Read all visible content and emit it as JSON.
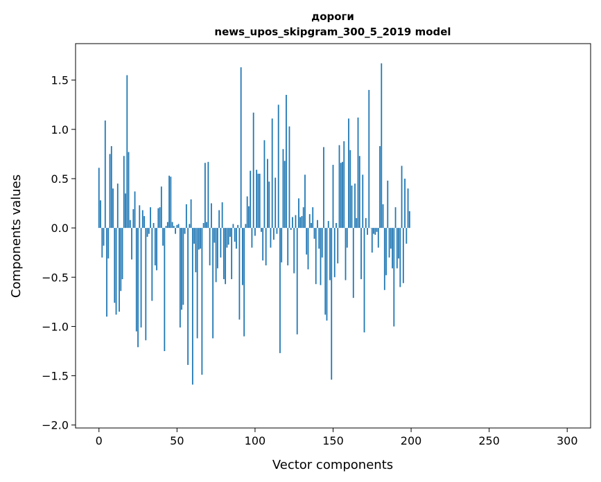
{
  "chart_data": {
    "type": "bar",
    "title": "дороги",
    "subtitle": "news_upos_skipgram_300_5_2019 model",
    "xlabel": "Vector components",
    "ylabel": "Components values",
    "xlim": [
      -15,
      315
    ],
    "ylim": [
      -2.03,
      1.87
    ],
    "xticks": [
      0,
      50,
      100,
      150,
      200,
      250,
      300
    ],
    "yticks": [
      -2.0,
      -1.5,
      -1.0,
      -0.5,
      0.0,
      0.5,
      1.0,
      1.5
    ],
    "ytick_labels": [
      "−2.0",
      "−1.5",
      "−1.0",
      "−0.5",
      "0.0",
      "0.5",
      "1.0",
      "1.5"
    ],
    "grid": false,
    "bar_color": "#1f77b4",
    "values": [
      0.61,
      0.28,
      -0.3,
      -0.18,
      1.09,
      -0.9,
      -0.31,
      0.75,
      0.83,
      0.4,
      -0.76,
      -0.88,
      0.45,
      -0.85,
      -0.64,
      -0.52,
      0.73,
      0.35,
      1.55,
      0.77,
      0.08,
      -0.32,
      0.19,
      0.37,
      -1.05,
      -1.21,
      0.23,
      -1.01,
      0.18,
      0.12,
      -1.14,
      -0.09,
      -0.06,
      0.21,
      -0.74,
      0.05,
      -0.38,
      -0.43,
      0.2,
      0.21,
      0.42,
      -0.18,
      -1.25,
      0.02,
      0.06,
      0.53,
      0.52,
      0.06,
      0.02,
      -0.06,
      0.03,
      0.04,
      -1.01,
      -0.83,
      -0.78,
      -0.06,
      0.24,
      -1.39,
      0.04,
      0.29,
      -1.59,
      -0.16,
      -0.45,
      -1.12,
      -0.22,
      -0.21,
      -1.49,
      0.05,
      0.66,
      0.06,
      0.67,
      -0.38,
      0.25,
      -1.12,
      -0.15,
      -0.55,
      -0.41,
      0.18,
      -0.3,
      0.26,
      -0.52,
      -0.57,
      -0.2,
      -0.17,
      -0.09,
      -0.52,
      0.04,
      -0.14,
      -0.21,
      0.03,
      -0.93,
      1.63,
      -0.58,
      -1.1,
      0.04,
      0.32,
      0.22,
      0.58,
      -0.2,
      1.17,
      -0.08,
      0.59,
      0.55,
      0.55,
      -0.04,
      -0.33,
      0.89,
      -0.38,
      0.7,
      0.47,
      -0.2,
      1.11,
      -0.12,
      0.51,
      -0.06,
      1.25,
      -1.27,
      -0.35,
      0.8,
      0.68,
      1.35,
      -0.38,
      1.03,
      -0.02,
      0.11,
      -0.46,
      0.13,
      -1.08,
      0.3,
      0.11,
      0.12,
      0.21,
      0.54,
      -0.27,
      -0.42,
      0.14,
      0.05,
      0.21,
      -0.11,
      -0.57,
      0.08,
      -0.21,
      -0.58,
      -0.3,
      0.82,
      -0.88,
      -0.94,
      0.07,
      -0.53,
      -1.54,
      0.64,
      -0.5,
      0.05,
      -0.36,
      0.84,
      0.66,
      0.67,
      0.88,
      -0.53,
      -0.2,
      1.11,
      0.79,
      0.43,
      -0.71,
      0.45,
      0.1,
      1.12,
      0.73,
      -0.52,
      0.54,
      -1.06,
      0.1,
      -0.07,
      1.4,
      0.0,
      -0.25,
      -0.06,
      -0.07,
      -0.04,
      -0.2,
      0.83,
      1.67,
      0.24,
      -0.63,
      -0.48,
      0.48,
      -0.3,
      -0.21,
      -0.41,
      -1.0,
      0.21,
      -0.41,
      -0.31,
      -0.6,
      0.63,
      -0.56,
      0.5,
      -0.16,
      0.4,
      0.17
    ]
  }
}
